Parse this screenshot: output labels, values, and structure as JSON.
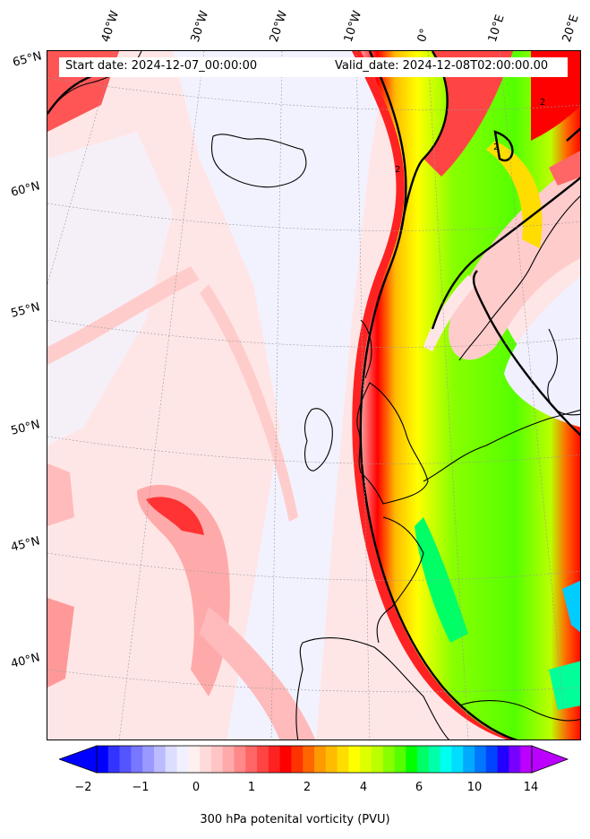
{
  "map": {
    "start_date": "Start date: 2024-12-07_00:00:00",
    "valid_date": "Valid_date: 2024-12-08T02:00:00.00",
    "longitude_labels": [
      "40°W",
      "30°W",
      "20°W",
      "10°W",
      "0°",
      "10°E",
      "20°E"
    ],
    "latitude_labels": [
      "65°N",
      "60°N",
      "55°N",
      "50°N",
      "45°N",
      "40°N"
    ],
    "contour_level_label": "2",
    "colorbar": {
      "label": "300 hPa potenital vorticity (PVU)",
      "tick_labels": [
        "−2",
        "−1",
        "0",
        "1",
        "2",
        "4",
        "6",
        "10",
        "14"
      ],
      "colors": [
        "#0000ff",
        "#3333ff",
        "#5555ff",
        "#7777ff",
        "#9999ff",
        "#bbbbff",
        "#ddddff",
        "#f0f0ff",
        "#fff0f0",
        "#ffdada",
        "#ffc4c4",
        "#ffaaaa",
        "#ff8888",
        "#ff6666",
        "#ff4444",
        "#ff2222",
        "#ff0000",
        "#ff3300",
        "#ff6600",
        "#ff9900",
        "#ffbb00",
        "#ffdd00",
        "#ffff00",
        "#ddff00",
        "#bbff00",
        "#88ff00",
        "#55ff00",
        "#00ff00",
        "#00ff66",
        "#00ffaa",
        "#00ffee",
        "#00ddff",
        "#00aaff",
        "#0077ff",
        "#0044ff",
        "#2200ff",
        "#7700ff",
        "#bb00ff"
      ],
      "extend_low_color": "#0000ff",
      "extend_high_color": "#bb00ff"
    }
  }
}
